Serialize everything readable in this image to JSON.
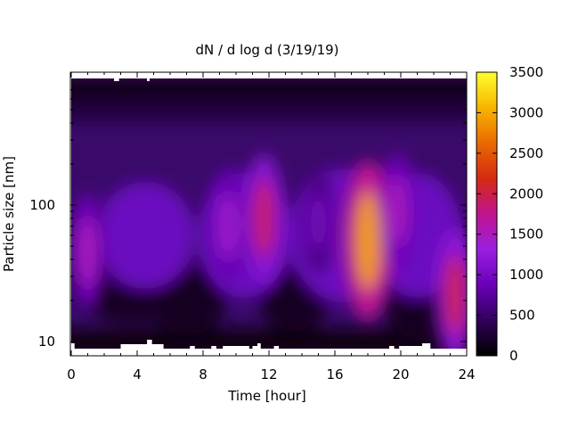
{
  "chart_data": {
    "type": "heatmap",
    "title": "dN / d log d (3/19/19)",
    "xlabel": "Time [hour]",
    "ylabel": "Particle size [nm]",
    "xlim": [
      0,
      24
    ],
    "xticks": [
      "0",
      "4",
      "8",
      "12",
      "16",
      "20",
      "24"
    ],
    "ylim": [
      8,
      800
    ],
    "yscale": "log",
    "yticks": [
      {
        "value": 10,
        "label": "10"
      },
      {
        "value": 100,
        "label": "100"
      }
    ],
    "colorbar": {
      "min": 0,
      "max": 3500,
      "ticks": [
        "0",
        "500",
        "1000",
        "1500",
        "2000",
        "2500",
        "3000",
        "3500"
      ],
      "colormap": [
        "#000000",
        "#30005a",
        "#6a00b8",
        "#9a1fe0",
        "#c0138f",
        "#d42a12",
        "#e86a00",
        "#f8b400",
        "#ffff30"
      ]
    },
    "background": "#3a0a6a",
    "features": [
      {
        "x": 1.0,
        "y": 45,
        "value": 1500
      },
      {
        "x": 9.5,
        "y": 70,
        "value": 1400
      },
      {
        "x": 11.7,
        "y": 80,
        "value": 1900
      },
      {
        "x": 15.0,
        "y": 75,
        "value": 1000
      },
      {
        "x": 18.0,
        "y": 55,
        "value": 2900
      },
      {
        "x": 19.8,
        "y": 90,
        "value": 1500
      },
      {
        "x": 23.3,
        "y": 22,
        "value": 2000
      }
    ]
  }
}
